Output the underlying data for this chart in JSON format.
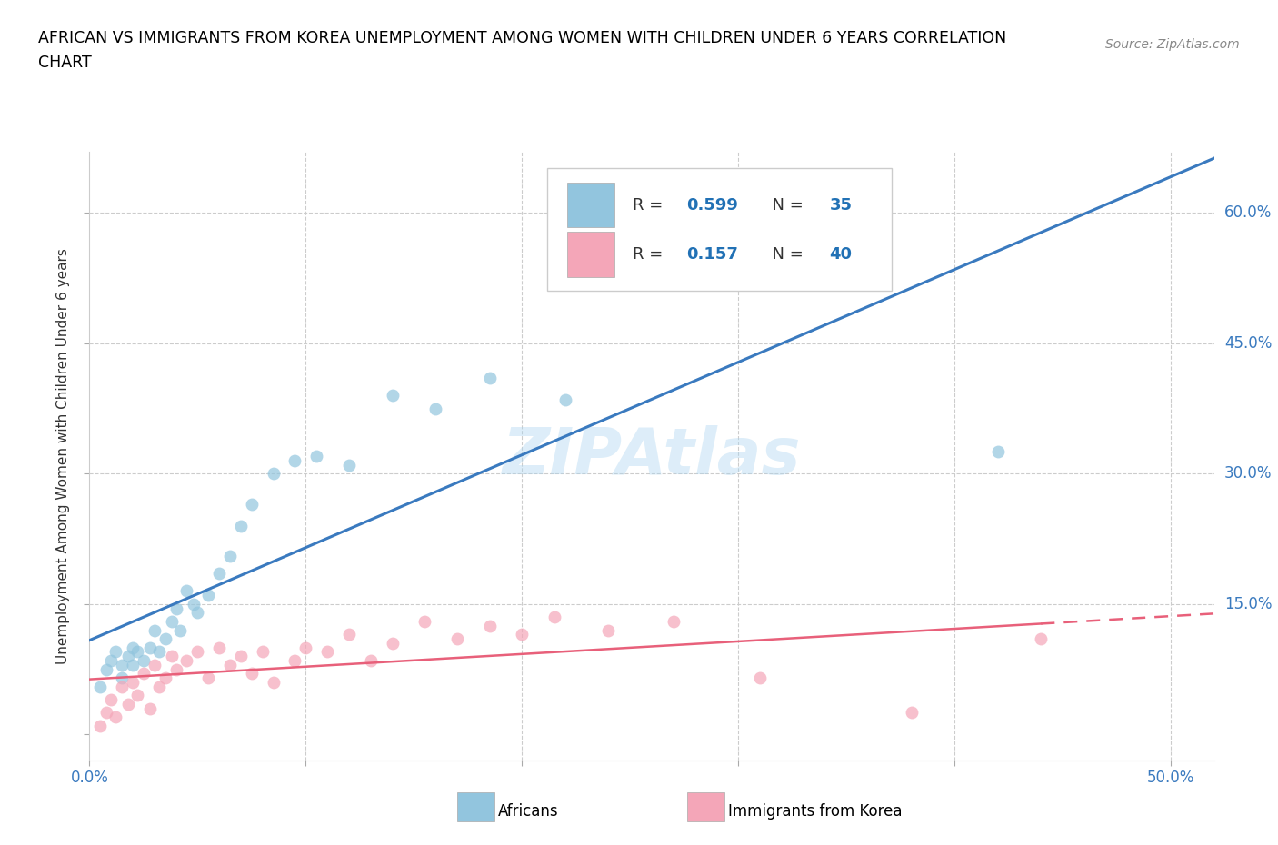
{
  "title_line1": "AFRICAN VS IMMIGRANTS FROM KOREA UNEMPLOYMENT AMONG WOMEN WITH CHILDREN UNDER 6 YEARS CORRELATION",
  "title_line2": "CHART",
  "source": "Source: ZipAtlas.com",
  "ylabel": "Unemployment Among Women with Children Under 6 years",
  "xlim": [
    0.0,
    0.52
  ],
  "ylim": [
    -0.03,
    0.67
  ],
  "africans_color": "#92c5de",
  "korea_color": "#f4a6b8",
  "africa_line_color": "#3a7abf",
  "korea_line_solid_color": "#e8607a",
  "korea_line_dash_color": "#e8607a",
  "watermark": "ZIPAtlas",
  "africans_x": [
    0.005,
    0.008,
    0.01,
    0.012,
    0.015,
    0.015,
    0.018,
    0.02,
    0.02,
    0.022,
    0.025,
    0.028,
    0.03,
    0.032,
    0.035,
    0.038,
    0.04,
    0.042,
    0.045,
    0.048,
    0.05,
    0.055,
    0.06,
    0.065,
    0.07,
    0.075,
    0.085,
    0.095,
    0.105,
    0.12,
    0.14,
    0.16,
    0.185,
    0.22,
    0.42
  ],
  "africans_y": [
    0.055,
    0.075,
    0.085,
    0.095,
    0.065,
    0.08,
    0.09,
    0.08,
    0.1,
    0.095,
    0.085,
    0.1,
    0.12,
    0.095,
    0.11,
    0.13,
    0.145,
    0.12,
    0.165,
    0.15,
    0.14,
    0.16,
    0.185,
    0.205,
    0.24,
    0.265,
    0.3,
    0.315,
    0.32,
    0.31,
    0.39,
    0.375,
    0.41,
    0.385,
    0.325
  ],
  "korea_x": [
    0.005,
    0.008,
    0.01,
    0.012,
    0.015,
    0.018,
    0.02,
    0.022,
    0.025,
    0.028,
    0.03,
    0.032,
    0.035,
    0.038,
    0.04,
    0.045,
    0.05,
    0.055,
    0.06,
    0.065,
    0.07,
    0.075,
    0.08,
    0.085,
    0.095,
    0.1,
    0.11,
    0.12,
    0.13,
    0.14,
    0.155,
    0.17,
    0.185,
    0.2,
    0.215,
    0.24,
    0.27,
    0.31,
    0.38,
    0.44
  ],
  "korea_y": [
    0.01,
    0.025,
    0.04,
    0.02,
    0.055,
    0.035,
    0.06,
    0.045,
    0.07,
    0.03,
    0.08,
    0.055,
    0.065,
    0.09,
    0.075,
    0.085,
    0.095,
    0.065,
    0.1,
    0.08,
    0.09,
    0.07,
    0.095,
    0.06,
    0.085,
    0.1,
    0.095,
    0.115,
    0.085,
    0.105,
    0.13,
    0.11,
    0.125,
    0.115,
    0.135,
    0.12,
    0.13,
    0.065,
    0.025,
    0.11
  ]
}
